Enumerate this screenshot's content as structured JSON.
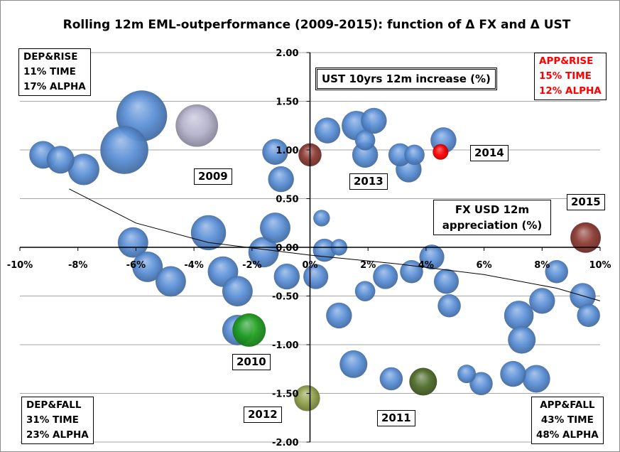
{
  "chart_data": {
    "type": "bubble",
    "title": "Rolling 12m EML-outperformance (2009-2015): function of Δ FX and Δ UST",
    "xlabel": "FX USD 12m appreciation (%)",
    "ylabel": "UST 10yrs 12m increase (%)",
    "x_ticks": [
      "-10%",
      "-8%",
      "-6%",
      "-4%",
      "-2%",
      "0%",
      "2%",
      "4%",
      "6%",
      "8%",
      "10%"
    ],
    "y_ticks": [
      "2.00",
      "1.50",
      "1.00",
      "0.50",
      "0.00",
      "-0.50",
      "-1.00",
      "-1.50",
      "-2.00"
    ],
    "xlim": [
      -10,
      10
    ],
    "ylim": [
      -2,
      2
    ],
    "grid": "horizontal",
    "quadrants": {
      "dep_rise": {
        "name": "DEP&RISE",
        "time": "11% TIME",
        "alpha": "17% ALPHA"
      },
      "app_rise": {
        "name": "APP&RISE",
        "time": "15% TIME",
        "alpha": "12% ALPHA",
        "color": "#ff0000"
      },
      "dep_fall": {
        "name": "DEP&FALL",
        "time": "31% TIME",
        "alpha": "23% ALPHA"
      },
      "app_fall": {
        "name": "APP&FALL",
        "time": "43% TIME",
        "alpha": "48% ALPHA"
      }
    },
    "year_labels": [
      "2009",
      "2010",
      "2011",
      "2012",
      "2013",
      "2014",
      "2015"
    ],
    "colors": {
      "default": "#5a8fd6",
      "2009": "#b5b2cc",
      "2010": "#1f9e1f",
      "2011": "#4e6b2a",
      "2012": "#8ea04a",
      "2013": "#8b3a32",
      "2014": "#ff0000",
      "2015": "#8b3a32"
    },
    "trend_curve": [
      {
        "x": -8.3,
        "y": 0.6
      },
      {
        "x": -6,
        "y": 0.25
      },
      {
        "x": -3.5,
        "y": 0.05
      },
      {
        "x": 0,
        "y": -0.08
      },
      {
        "x": 3,
        "y": -0.17
      },
      {
        "x": 6,
        "y": -0.28
      },
      {
        "x": 8.5,
        "y": -0.42
      },
      {
        "x": 10,
        "y": -0.55
      }
    ],
    "bubbles": [
      {
        "x": -9.2,
        "y": 0.95,
        "size": 0.3,
        "year": ""
      },
      {
        "x": -8.6,
        "y": 0.9,
        "size": 0.3,
        "year": ""
      },
      {
        "x": -7.8,
        "y": 0.8,
        "size": 0.34,
        "year": ""
      },
      {
        "x": -6.4,
        "y": 1.0,
        "size": 0.52,
        "year": ""
      },
      {
        "x": -5.8,
        "y": 1.35,
        "size": 0.55,
        "year": ""
      },
      {
        "x": -3.9,
        "y": 1.25,
        "size": 0.46,
        "year": "2009"
      },
      {
        "x": -1.2,
        "y": 0.98,
        "size": 0.28,
        "year": ""
      },
      {
        "x": -1.0,
        "y": 0.7,
        "size": 0.28,
        "year": ""
      },
      {
        "x": 0.6,
        "y": 1.2,
        "size": 0.28,
        "year": ""
      },
      {
        "x": 1.6,
        "y": 1.25,
        "size": 0.32,
        "year": ""
      },
      {
        "x": 1.9,
        "y": 1.1,
        "size": 0.22,
        "year": ""
      },
      {
        "x": 1.9,
        "y": 0.95,
        "size": 0.28,
        "year": ""
      },
      {
        "x": 2.2,
        "y": 1.3,
        "size": 0.28,
        "year": ""
      },
      {
        "x": 3.1,
        "y": 0.95,
        "size": 0.25,
        "year": ""
      },
      {
        "x": 3.4,
        "y": 0.8,
        "size": 0.28,
        "year": ""
      },
      {
        "x": 3.6,
        "y": 0.95,
        "size": 0.22,
        "year": ""
      },
      {
        "x": 4.6,
        "y": 1.1,
        "size": 0.28,
        "year": ""
      },
      {
        "x": 0.0,
        "y": 0.95,
        "size": 0.25,
        "year": "2013"
      },
      {
        "x": 4.5,
        "y": 0.98,
        "size": 0.17,
        "year": "2014"
      },
      {
        "x": -6.1,
        "y": 0.05,
        "size": 0.33,
        "year": ""
      },
      {
        "x": -5.6,
        "y": -0.2,
        "size": 0.33,
        "year": ""
      },
      {
        "x": -4.8,
        "y": -0.35,
        "size": 0.33,
        "year": ""
      },
      {
        "x": -3.5,
        "y": 0.15,
        "size": 0.38,
        "year": ""
      },
      {
        "x": -3.0,
        "y": -0.25,
        "size": 0.33,
        "year": ""
      },
      {
        "x": -2.5,
        "y": -0.45,
        "size": 0.33,
        "year": ""
      },
      {
        "x": -1.6,
        "y": -0.05,
        "size": 0.33,
        "year": ""
      },
      {
        "x": -1.2,
        "y": 0.2,
        "size": 0.33,
        "year": ""
      },
      {
        "x": -0.8,
        "y": -0.3,
        "size": 0.28,
        "year": ""
      },
      {
        "x": 0.2,
        "y": -0.3,
        "size": 0.27,
        "year": ""
      },
      {
        "x": 0.4,
        "y": 0.3,
        "size": 0.18,
        "year": ""
      },
      {
        "x": 0.5,
        "y": -0.03,
        "size": 0.25,
        "year": ""
      },
      {
        "x": 1.0,
        "y": 0.0,
        "size": 0.18,
        "year": ""
      },
      {
        "x": 1.0,
        "y": -0.7,
        "size": 0.28,
        "year": ""
      },
      {
        "x": 1.9,
        "y": -0.45,
        "size": 0.22,
        "year": ""
      },
      {
        "x": 2.6,
        "y": -0.3,
        "size": 0.27,
        "year": ""
      },
      {
        "x": 3.5,
        "y": -0.25,
        "size": 0.25,
        "year": ""
      },
      {
        "x": 4.2,
        "y": -0.1,
        "size": 0.27,
        "year": ""
      },
      {
        "x": 4.7,
        "y": -0.35,
        "size": 0.27,
        "year": ""
      },
      {
        "x": 4.8,
        "y": -0.6,
        "size": 0.25,
        "year": ""
      },
      {
        "x": 7.2,
        "y": -0.7,
        "size": 0.32,
        "year": ""
      },
      {
        "x": 7.3,
        "y": -0.95,
        "size": 0.3,
        "year": ""
      },
      {
        "x": 8.0,
        "y": -0.55,
        "size": 0.28,
        "year": ""
      },
      {
        "x": 8.5,
        "y": -0.25,
        "size": 0.25,
        "year": ""
      },
      {
        "x": 9.4,
        "y": -0.5,
        "size": 0.28,
        "year": ""
      },
      {
        "x": 9.6,
        "y": -0.7,
        "size": 0.25,
        "year": ""
      },
      {
        "x": -2.5,
        "y": -0.85,
        "size": 0.33,
        "year": ""
      },
      {
        "x": 1.5,
        "y": -1.2,
        "size": 0.3,
        "year": ""
      },
      {
        "x": 2.8,
        "y": -1.35,
        "size": 0.25,
        "year": ""
      },
      {
        "x": 5.4,
        "y": -1.3,
        "size": 0.2,
        "year": ""
      },
      {
        "x": 5.9,
        "y": -1.4,
        "size": 0.25,
        "year": ""
      },
      {
        "x": 7.0,
        "y": -1.3,
        "size": 0.28,
        "year": ""
      },
      {
        "x": 7.8,
        "y": -1.35,
        "size": 0.3,
        "year": ""
      },
      {
        "x": -2.1,
        "y": -0.85,
        "size": 0.36,
        "year": "2010"
      },
      {
        "x": 3.9,
        "y": -1.38,
        "size": 0.3,
        "year": "2011"
      },
      {
        "x": -0.1,
        "y": -1.55,
        "size": 0.28,
        "year": "2012"
      },
      {
        "x": 9.5,
        "y": 0.1,
        "size": 0.33,
        "year": "2015"
      }
    ]
  }
}
